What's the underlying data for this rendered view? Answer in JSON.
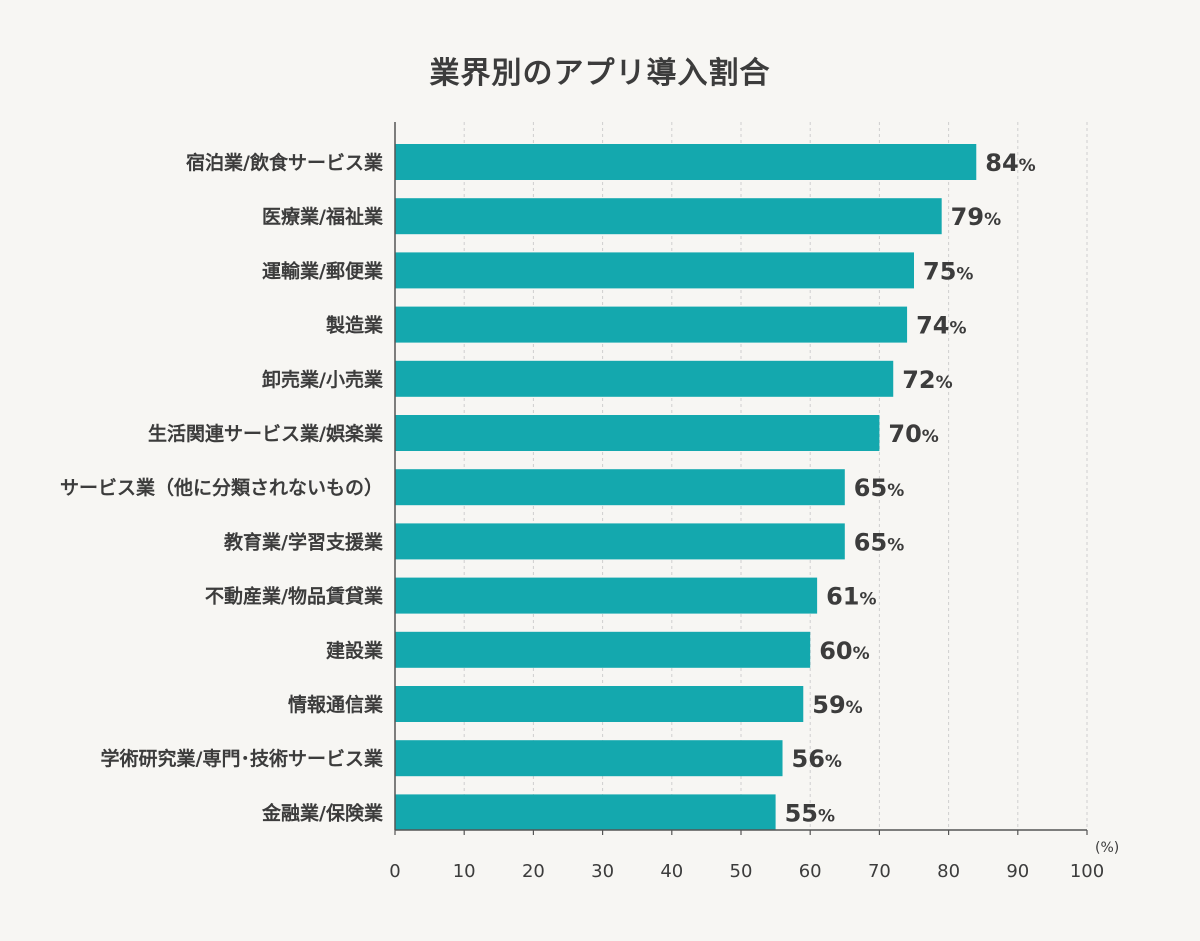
{
  "chart_data": {
    "type": "bar",
    "orientation": "horizontal",
    "title": "業界別のアプリ導入割合",
    "categories": [
      "宿泊業/飲食サービス業",
      "医療業/福祉業",
      "運輸業/郵便業",
      "製造業",
      "卸売業/小売業",
      "生活関連サービス業/娯楽業",
      "サービス業（他に分類されないもの）",
      "教育業/学習支援業",
      "不動産業/物品賃貸業",
      "建設業",
      "情報通信業",
      "学術研究業/専門･技術サービス業",
      "金融業/保険業"
    ],
    "values": [
      84,
      79,
      75,
      74,
      72,
      70,
      65,
      65,
      61,
      60,
      59,
      56,
      55
    ],
    "value_unit": "%",
    "xlim": [
      0,
      100
    ],
    "xticks": [
      0,
      10,
      20,
      30,
      40,
      50,
      60,
      70,
      80,
      90,
      100
    ],
    "xunit_label": "(%)",
    "grid": "vertical-dashed",
    "bar_color": "#14a8ae",
    "axis_color": "#555555",
    "grid_color": "#cfcfcf",
    "background": "#f7f6f3"
  }
}
